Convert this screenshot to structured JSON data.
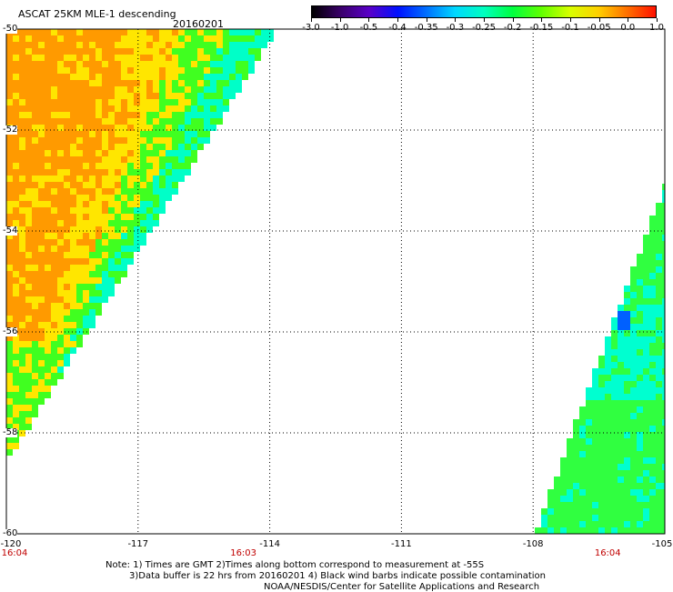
{
  "header": {
    "title": "ASCAT 25KM MLE-1 descending",
    "date": "20160201"
  },
  "colorbar": {
    "labels": [
      "-3.0",
      "-1.0",
      "-0.5",
      "-0.4",
      "-0.35",
      "-0.3",
      "-0.25",
      "-0.2",
      "-0.15",
      "-0.1",
      "-0.05",
      "0.0",
      "1.0"
    ],
    "colors": [
      "#000000",
      "#3a006a",
      "#5a00c8",
      "#0010ff",
      "#0070ff",
      "#00d8ff",
      "#00ffc0",
      "#00ff40",
      "#60ff00",
      "#d8ff00",
      "#ffd000",
      "#ff7000",
      "#ff1000"
    ]
  },
  "map": {
    "x_axis": {
      "labels": [
        "-120",
        "-117",
        "-114",
        "-111",
        "-108",
        "-105"
      ],
      "values": [
        -120,
        -117,
        -114,
        -111,
        -108,
        -105
      ]
    },
    "y_axis": {
      "labels": [
        "-50",
        "-52",
        "-54",
        "-56",
        "-58",
        "-60"
      ],
      "values": [
        -50,
        -52,
        -54,
        -56,
        -58,
        -60
      ]
    },
    "lon_range": [
      -120,
      -105
    ],
    "lat_range": [
      -60,
      -50
    ],
    "times": [
      {
        "label": "16:04",
        "lon": -120
      },
      {
        "label": "16:03",
        "lon": -114.6
      },
      {
        "label": "16:04",
        "lon": -106.3
      }
    ],
    "swath_colors": {
      "west_orange": "#ff9a00",
      "west_yellow": "#ffe600",
      "west_green": "#40ff20",
      "west_cyan": "#00ffc8",
      "east_green": "#30ff40",
      "east_cyan": "#00ffd0",
      "east_blue": "#0060ff"
    }
  },
  "footer": {
    "note1": "Note: 1) Times are GMT 2)Times along bottom correspond to measurement at -55S",
    "note2": "3)Data buffer is 22 hrs from 20160201 4) Black wind barbs indicate possible contamination",
    "note3": "NOAA/NESDIS/Center for Satellite Applications and Research"
  }
}
